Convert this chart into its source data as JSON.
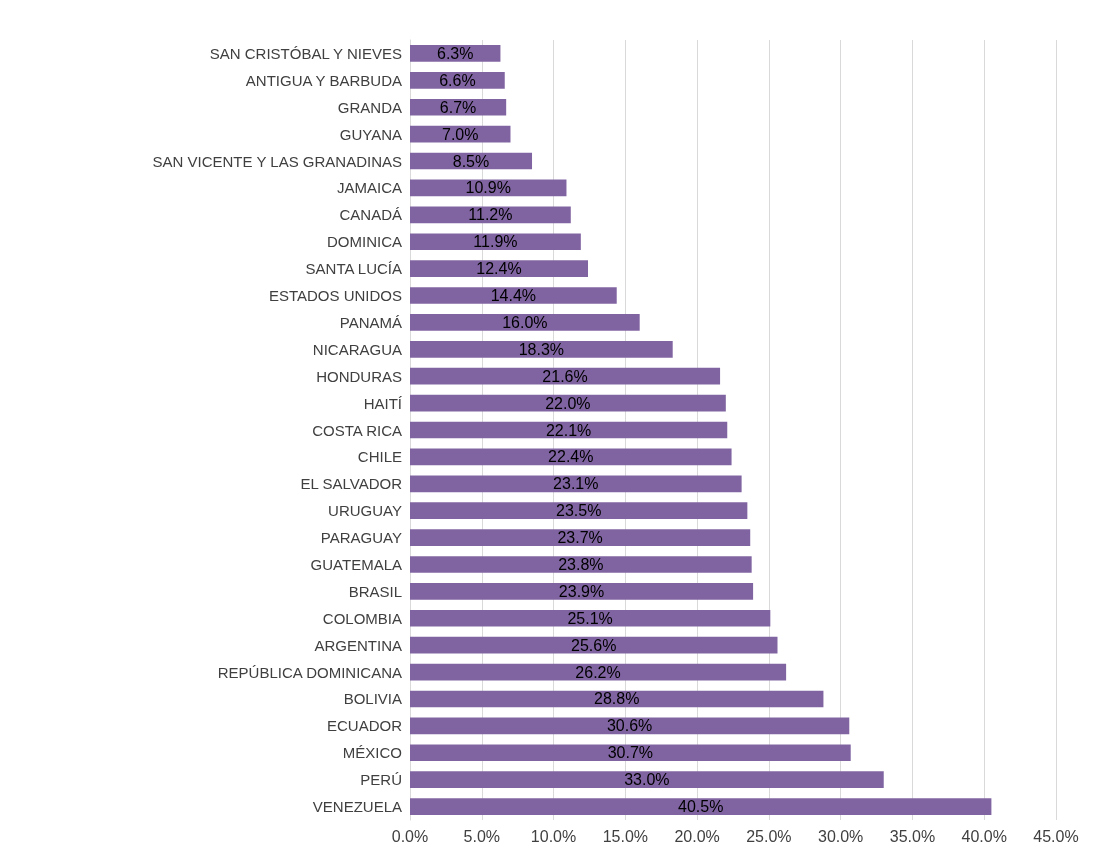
{
  "chart_data": {
    "type": "bar",
    "orientation": "horizontal",
    "categories": [
      "SAN CRISTÓBAL Y NIEVES",
      "ANTIGUA Y BARBUDA",
      "GRANDA",
      "GUYANA",
      "SAN VICENTE Y LAS GRANADINAS",
      "JAMAICA",
      "CANADÁ",
      "DOMINICA",
      "SANTA LUCÍA",
      "ESTADOS UNIDOS",
      "PANAMÁ",
      "NICARAGUA",
      "HONDURAS",
      "HAITÍ",
      "COSTA RICA",
      "CHILE",
      "EL SALVADOR",
      "URUGUAY",
      "PARAGUAY",
      "GUATEMALA",
      "BRASIL",
      "COLOMBIA",
      "ARGENTINA",
      "REPÚBLICA DOMINICANA",
      "BOLIVIA",
      "ECUADOR",
      "MÉXICO",
      "PERÚ",
      "VENEZUELA"
    ],
    "values": [
      6.3,
      6.6,
      6.7,
      7.0,
      8.5,
      10.9,
      11.2,
      11.9,
      12.4,
      14.4,
      16.0,
      18.3,
      21.6,
      22.0,
      22.1,
      22.4,
      23.1,
      23.5,
      23.7,
      23.8,
      23.9,
      25.1,
      25.6,
      26.2,
      28.8,
      30.6,
      30.7,
      33.0,
      40.5
    ],
    "value_labels": [
      "6.3%",
      "6.6%",
      "6.7%",
      "7.0%",
      "8.5%",
      "10.9%",
      "11.2%",
      "11.9%",
      "12.4%",
      "14.4%",
      "16.0%",
      "18.3%",
      "21.6%",
      "22.0%",
      "22.1%",
      "22.4%",
      "23.1%",
      "23.5%",
      "23.7%",
      "23.8%",
      "23.9%",
      "25.1%",
      "25.6%",
      "26.2%",
      "28.8%",
      "30.6%",
      "30.7%",
      "33.0%",
      "40.5%"
    ],
    "color": "#8064a2",
    "xlim": [
      0,
      45
    ],
    "xticks": [
      {
        "value": 0,
        "label": "0.0%"
      },
      {
        "value": 5,
        "label": "5.0%"
      },
      {
        "value": 10,
        "label": "10.0%"
      },
      {
        "value": 15,
        "label": "15.0%"
      },
      {
        "value": 20,
        "label": "20.0%"
      },
      {
        "value": 25,
        "label": "25.0%"
      },
      {
        "value": 30,
        "label": "30.0%"
      },
      {
        "value": 35,
        "label": "35.0%"
      },
      {
        "value": 40,
        "label": "40.0%"
      },
      {
        "value": 45,
        "label": "45.0%"
      }
    ],
    "grid": "x"
  }
}
